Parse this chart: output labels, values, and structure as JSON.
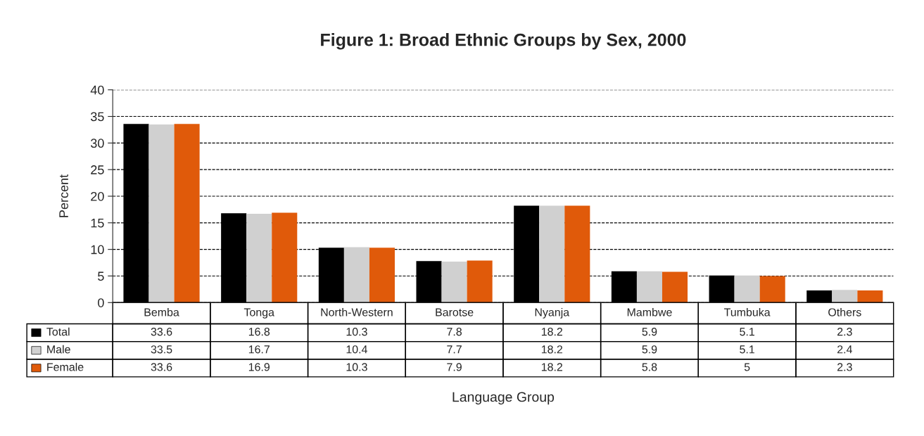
{
  "chart_data": {
    "type": "bar",
    "title": "Figure 1: Broad Ethnic Groups by Sex, 2000",
    "annotations": [
      "Language Group"
    ],
    "ylabel": "Percent",
    "categories": [
      "Bemba",
      "Tonga",
      "North-Western",
      "Barotse",
      "Nyanja",
      "Mambwe",
      "Tumbuka",
      "Others"
    ],
    "series": [
      {
        "name": "Total",
        "color": "#000000",
        "values": [
          33.6,
          16.8,
          10.3,
          7.8,
          18.2,
          5.9,
          5.1,
          2.3
        ],
        "value_labels": [
          "33.6",
          "16.8",
          "10.3",
          "7.8",
          "18.2",
          "5.9",
          "5.1",
          "2.3"
        ]
      },
      {
        "name": "Male",
        "color": "#d0d0d0",
        "values": [
          33.5,
          16.7,
          10.4,
          7.7,
          18.2,
          5.9,
          5.1,
          2.4
        ],
        "value_labels": [
          "33.5",
          "16.7",
          "10.4",
          "7.7",
          "18.2",
          "5.9",
          "5.1",
          "2.4"
        ]
      },
      {
        "name": "Female",
        "color": "#e05a0a",
        "values": [
          33.6,
          16.9,
          10.3,
          7.9,
          18.2,
          5.8,
          5,
          2.3
        ],
        "value_labels": [
          "33.6",
          "16.9",
          "10.3",
          "7.9",
          "18.2",
          "5.8",
          "5",
          "2.3"
        ]
      }
    ],
    "ylim": [
      0,
      40
    ],
    "yticks": [
      0,
      5,
      10,
      15,
      20,
      25,
      30,
      35,
      40
    ],
    "grid": "y",
    "line_style": "dashed",
    "legend": "bottom"
  }
}
